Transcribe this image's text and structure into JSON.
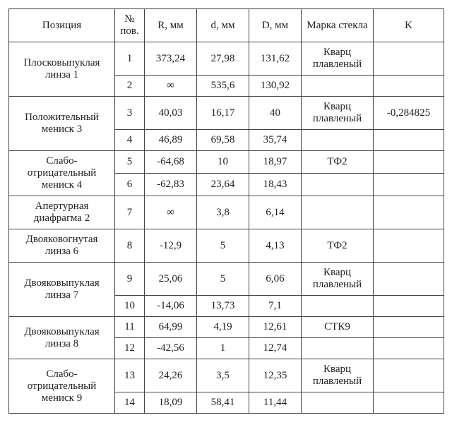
{
  "table": {
    "headers": {
      "pos": "Позиция",
      "pov": "№ пов.",
      "r": "R, мм",
      "d": "d, мм",
      "dd": "D, мм",
      "glass": "Марка стекла",
      "k": "K"
    },
    "groups": [
      {
        "position": "Плосковыпуклая линза 1",
        "rows": [
          {
            "pov": "1",
            "r": "373,24",
            "d": "27,98",
            "dd": "131,62",
            "glass": "Кварц плавленый",
            "k": ""
          },
          {
            "pov": "2",
            "r": "∞",
            "d": "535,6",
            "dd": "130,92",
            "glass": "",
            "k": ""
          }
        ]
      },
      {
        "position": "Положительный мениск 3",
        "rows": [
          {
            "pov": "3",
            "r": "40,03",
            "d": "16,17",
            "dd": "40",
            "glass": "Кварц плавленый",
            "k": "-0,284825"
          },
          {
            "pov": "4",
            "r": "46,89",
            "d": "69,58",
            "dd": "35,74",
            "glass": "",
            "k": ""
          }
        ]
      },
      {
        "position": "Слабо-\nотрицательный мениск 4",
        "rows": [
          {
            "pov": "5",
            "r": "-64,68",
            "d": "10",
            "dd": "18,97",
            "glass": "ТФ2",
            "k": ""
          },
          {
            "pov": "6",
            "r": "-62,83",
            "d": "23,64",
            "dd": "18,43",
            "glass": "",
            "k": ""
          }
        ]
      },
      {
        "position": "Апертурная диафрагма 2",
        "rows": [
          {
            "pov": "7",
            "r": "∞",
            "d": "3,8",
            "dd": "6,14",
            "glass": "",
            "k": ""
          }
        ]
      },
      {
        "position": "Двояковогнутая линза 6",
        "rows": [
          {
            "pov": "8",
            "r": "-12,9",
            "d": "5",
            "dd": "4,13",
            "glass": "ТФ2",
            "k": ""
          }
        ]
      },
      {
        "position": "Двояковыпуклая линза 7",
        "rows": [
          {
            "pov": "9",
            "r": "25,06",
            "d": "5",
            "dd": "6,06",
            "glass": "Кварц плавленый",
            "k": ""
          },
          {
            "pov": "10",
            "r": "-14,06",
            "d": "13,73",
            "dd": "7,1",
            "glass": "",
            "k": ""
          }
        ]
      },
      {
        "position": "Двояковыпуклая линза 8",
        "rows": [
          {
            "pov": "11",
            "r": "64,99",
            "d": "4,19",
            "dd": "12,61",
            "glass": "СТК9",
            "k": ""
          },
          {
            "pov": "12",
            "r": "-42,56",
            "d": "1",
            "dd": "12,74",
            "glass": "",
            "k": ""
          }
        ]
      },
      {
        "position": "Слабо-\nотрицательный мениск 9",
        "rows": [
          {
            "pov": "13",
            "r": "24,26",
            "d": "3,5",
            "dd": "12,35",
            "glass": "Кварц плавленый",
            "k": ""
          },
          {
            "pov": "14",
            "r": "18,09",
            "d": "58,41",
            "dd": "11,44",
            "glass": "",
            "k": ""
          }
        ]
      }
    ]
  }
}
